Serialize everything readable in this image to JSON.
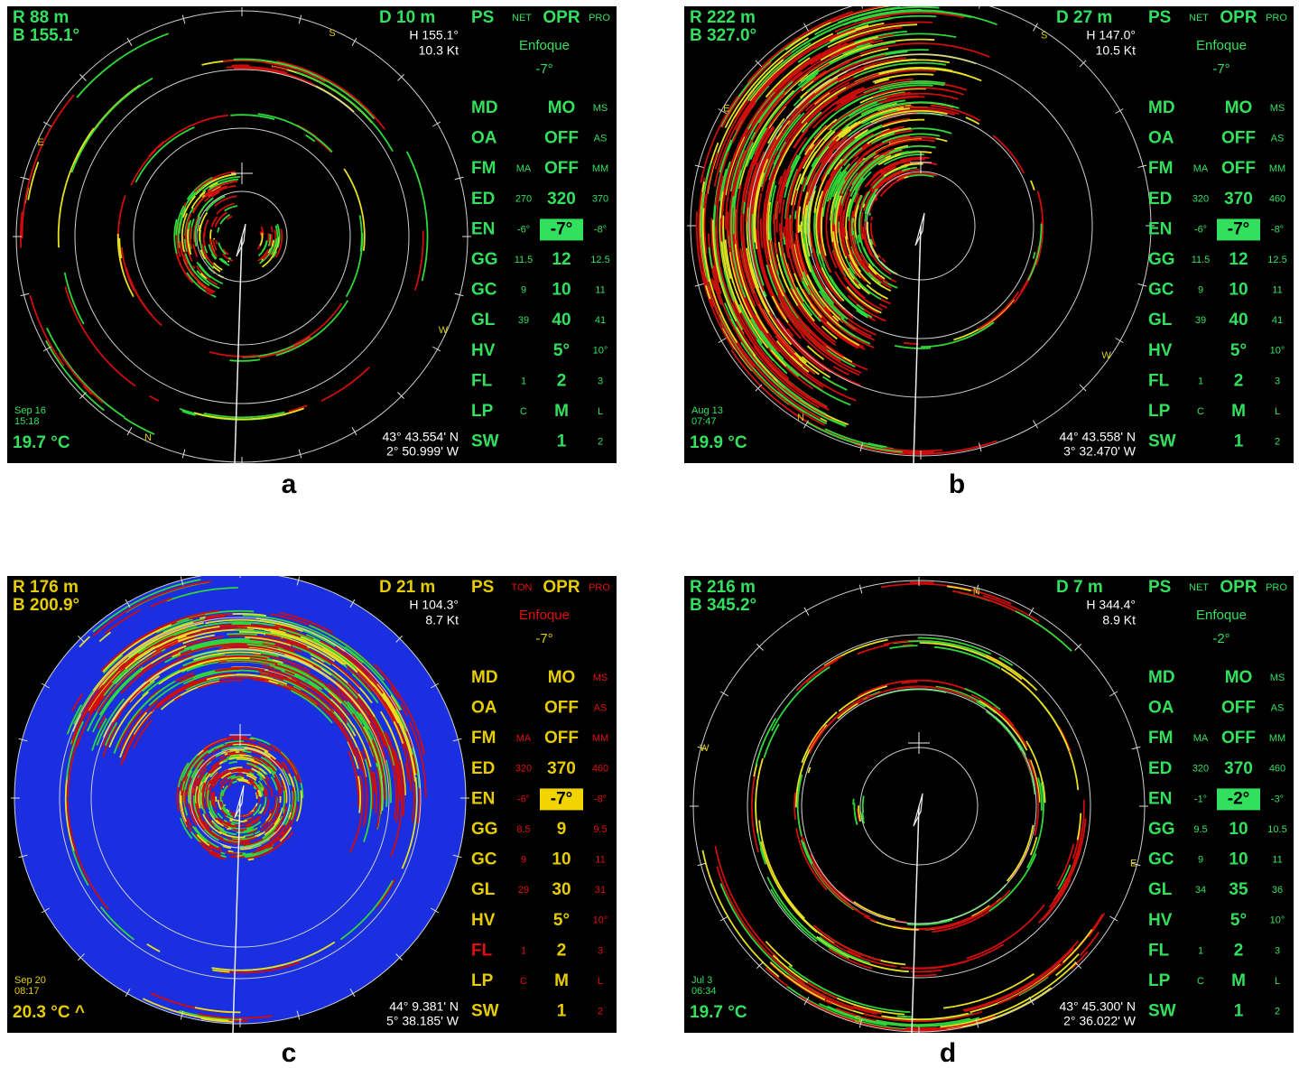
{
  "panels": [
    {
      "label": "a",
      "range": "R 88 m",
      "bearing": "B 155.1°",
      "depth": "D 10 m",
      "heading": "H 155.1°",
      "speed": "10.3 Kt",
      "date": "Sep 16",
      "time": "15:18",
      "temperature": "19.7 °C",
      "latitude": "43° 43.554' N",
      "longitude": "2° 50.999' W",
      "header": {
        "ps": "PS",
        "left": "NET",
        "mode": "OPR",
        "right": "PRO"
      },
      "beam": "Enfoque",
      "tilt": "-7°",
      "compass": [
        "S",
        "E",
        "W",
        "N"
      ],
      "theme": {
        "text": "#33e05e",
        "small": "#33e05e",
        "highlight": "#33e05e",
        "sonar_background": "#000000",
        "compass": "#d8cc10"
      },
      "rows": [
        {
          "name": "MD",
          "value": "MO",
          "high": "MS"
        },
        {
          "name": "OA",
          "value": "OFF",
          "high": "AS"
        },
        {
          "name": "FM",
          "low": "MA",
          "value": "OFF",
          "high": "MM"
        },
        {
          "name": "ED",
          "low": "270",
          "value": "320",
          "high": "370"
        },
        {
          "name": "EN",
          "low": "-6°",
          "value": "-7°",
          "high": "-8°",
          "selected": true
        },
        {
          "name": "GG",
          "low": "11.5",
          "value": "12",
          "high": "12.5"
        },
        {
          "name": "GC",
          "low": "9",
          "value": "10",
          "high": "11"
        },
        {
          "name": "GL",
          "low": "39",
          "value": "40",
          "high": "41"
        },
        {
          "name": "HV",
          "value": "5°",
          "high": "10°"
        },
        {
          "name": "FL",
          "low": "1",
          "value": "2",
          "high": "3"
        },
        {
          "name": "LP",
          "low": "C",
          "value": "M",
          "high": "L"
        },
        {
          "name": "SW",
          "value": "1",
          "high": "2"
        }
      ]
    },
    {
      "label": "b",
      "range": "R 222 m",
      "bearing": "B 327.0°",
      "depth": "D 27 m",
      "heading": "H 147.0°",
      "speed": "10.5 Kt",
      "date": "Aug 13",
      "time": "07:47",
      "temperature": "19.9 °C",
      "latitude": "44° 43.558' N",
      "longitude": "3° 32.470' W",
      "header": {
        "ps": "PS",
        "left": "NET",
        "mode": "OPR",
        "right": "PRO"
      },
      "beam": "Enfoque",
      "tilt": "-7°",
      "compass": [
        "E",
        "S",
        "W",
        "N"
      ],
      "theme": {
        "text": "#33e05e",
        "small": "#33e05e",
        "highlight": "#33e05e",
        "sonar_background": "#000000",
        "compass": "#d8cc10"
      },
      "rows": [
        {
          "name": "MD",
          "value": "MO",
          "high": "MS"
        },
        {
          "name": "OA",
          "value": "OFF",
          "high": "AS"
        },
        {
          "name": "FM",
          "low": "MA",
          "value": "OFF",
          "high": "MM"
        },
        {
          "name": "ED",
          "low": "320",
          "value": "370",
          "high": "460"
        },
        {
          "name": "EN",
          "low": "-6°",
          "value": "-7°",
          "high": "-8°",
          "selected": true
        },
        {
          "name": "GG",
          "low": "11.5",
          "value": "12",
          "high": "12.5"
        },
        {
          "name": "GC",
          "low": "9",
          "value": "10",
          "high": "11"
        },
        {
          "name": "GL",
          "low": "39",
          "value": "40",
          "high": "41"
        },
        {
          "name": "HV",
          "value": "5°",
          "high": "10°"
        },
        {
          "name": "FL",
          "low": "1",
          "value": "2",
          "high": "3"
        },
        {
          "name": "LP",
          "low": "C",
          "value": "M",
          "high": "L"
        },
        {
          "name": "SW",
          "value": "1",
          "high": "2"
        }
      ]
    },
    {
      "label": "c",
      "range": "R 176 m",
      "bearing": "B 200.9°",
      "depth": "D 21 m",
      "heading": "H 104.3°",
      "speed": "8.7 Kt",
      "date": "Sep 20",
      "time": "08:17",
      "temperature": "20.3 °C ^",
      "latitude": "44° 9.381' N",
      "longitude": "5° 38.185' W",
      "header": {
        "ps": "PS",
        "left": "TON",
        "mode": "OPR",
        "right": "PRO"
      },
      "beam": "Enfoque",
      "tilt": "-7°",
      "compass": [],
      "theme": {
        "text": "#e6cc00",
        "small": "#e01010",
        "highlight": "#f2d400",
        "sonar_background": "#1a2fe0",
        "compass": "#d8cc10"
      },
      "rows": [
        {
          "name": "MD",
          "value": "MO",
          "high": "MS"
        },
        {
          "name": "OA",
          "value": "OFF",
          "high": "AS"
        },
        {
          "name": "FM",
          "low": "MA",
          "value": "OFF",
          "high": "MM"
        },
        {
          "name": "ED",
          "low": "320",
          "value": "370",
          "high": "460"
        },
        {
          "name": "EN",
          "low": "-6°",
          "value": "-7°",
          "high": "-8°",
          "selected": true
        },
        {
          "name": "GG",
          "low": "8.5",
          "value": "9",
          "high": "9.5"
        },
        {
          "name": "GC",
          "low": "9",
          "value": "10",
          "high": "11"
        },
        {
          "name": "GL",
          "low": "29",
          "value": "30",
          "high": "31"
        },
        {
          "name": "HV",
          "value": "5°",
          "high": "10°"
        },
        {
          "name": "FL",
          "low": "1",
          "value": "2",
          "high": "3",
          "name_color": "#e01010"
        },
        {
          "name": "LP",
          "low": "C",
          "value": "M",
          "high": "L"
        },
        {
          "name": "SW",
          "value": "1",
          "high": "2"
        }
      ]
    },
    {
      "label": "d",
      "range": "R 216 m",
      "bearing": "B 345.2°",
      "depth": "D 7 m",
      "heading": "H 344.4°",
      "speed": "8.9 Kt",
      "date": "Jul 3",
      "time": "06:34",
      "temperature": "19.7 °C",
      "latitude": "43° 45.300' N",
      "longitude": "2° 36.022' W",
      "header": {
        "ps": "PS",
        "left": "NET",
        "mode": "OPR",
        "right": "PRO"
      },
      "beam": "Enfoque",
      "tilt": "-2°",
      "compass": [
        "N",
        "W",
        "E",
        "S"
      ],
      "theme": {
        "text": "#33e05e",
        "small": "#33e05e",
        "highlight": "#33e05e",
        "sonar_background": "#000000",
        "compass": "#d8cc10"
      },
      "rows": [
        {
          "name": "MD",
          "value": "MO",
          "high": "MS"
        },
        {
          "name": "OA",
          "value": "OFF",
          "high": "AS"
        },
        {
          "name": "FM",
          "low": "MA",
          "value": "OFF",
          "high": "MM"
        },
        {
          "name": "ED",
          "low": "320",
          "value": "370",
          "high": "460"
        },
        {
          "name": "EN",
          "low": "-1°",
          "value": "-2°",
          "high": "-3°",
          "selected": true
        },
        {
          "name": "GG",
          "low": "9.5",
          "value": "10",
          "high": "10.5"
        },
        {
          "name": "GC",
          "low": "9",
          "value": "10",
          "high": "11"
        },
        {
          "name": "GL",
          "low": "34",
          "value": "35",
          "high": "36"
        },
        {
          "name": "HV",
          "value": "5°",
          "high": "10°"
        },
        {
          "name": "FL",
          "low": "1",
          "value": "2",
          "high": "3"
        },
        {
          "name": "LP",
          "low": "C",
          "value": "M",
          "high": "L"
        },
        {
          "name": "SW",
          "value": "1",
          "high": "2"
        }
      ]
    }
  ]
}
